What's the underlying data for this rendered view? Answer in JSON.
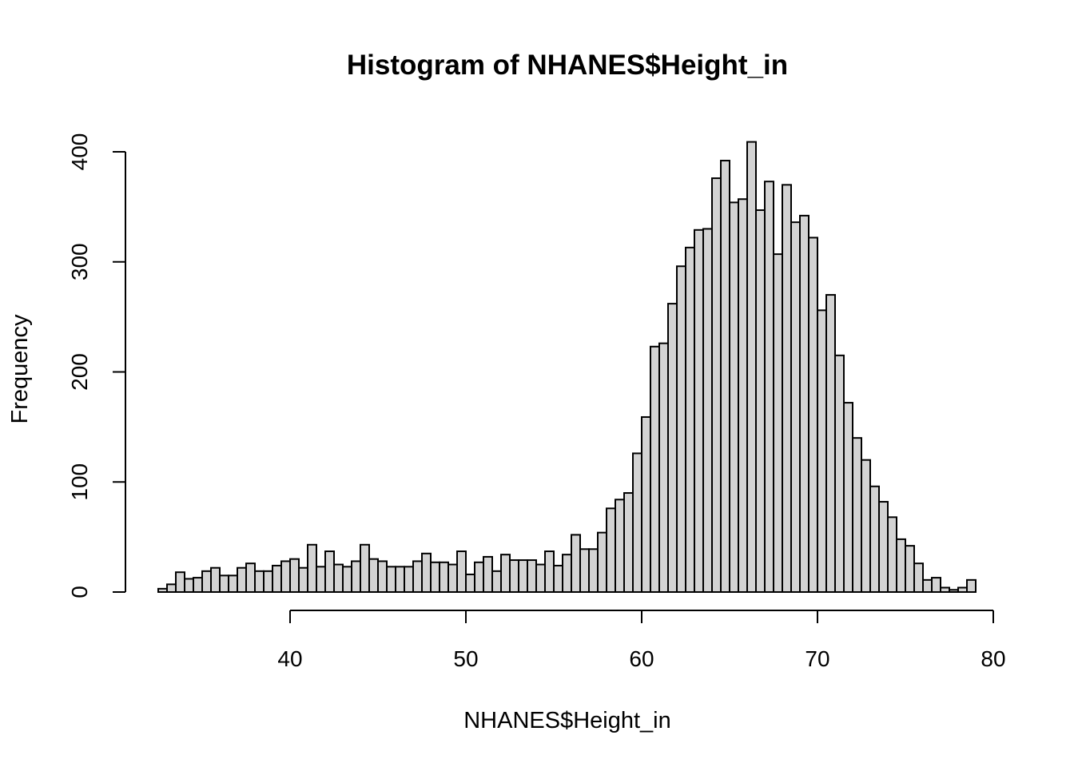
{
  "chart_data": {
    "type": "bar",
    "title": "Histogram of NHANES$Height_in",
    "xlabel": "NHANES$Height_in",
    "ylabel": "Frequency",
    "xlim": [
      32,
      80
    ],
    "ylim": [
      0,
      410
    ],
    "x_ticks": [
      40,
      50,
      60,
      70,
      80
    ],
    "x_tick_labels": [
      "40",
      "50",
      "60",
      "70",
      "80"
    ],
    "y_ticks": [
      0,
      100,
      200,
      300,
      400
    ],
    "y_tick_labels": [
      "0",
      "100",
      "200",
      "300",
      "400"
    ],
    "bin_start": 32.5,
    "bin_width": 0.5,
    "bar_color": "#d3d3d3",
    "values": [
      3,
      7,
      18,
      12,
      13,
      19,
      22,
      15,
      15,
      22,
      26,
      19,
      19,
      24,
      28,
      30,
      22,
      43,
      23,
      37,
      25,
      23,
      28,
      43,
      30,
      28,
      23,
      23,
      23,
      28,
      35,
      27,
      27,
      25,
      37,
      16,
      27,
      32,
      19,
      34,
      29,
      29,
      29,
      25,
      37,
      24,
      34,
      52,
      39,
      39,
      54,
      76,
      84,
      90,
      126,
      159,
      223,
      226,
      262,
      296,
      313,
      329,
      330,
      376,
      392,
      354,
      357,
      409,
      347,
      373,
      307,
      370,
      336,
      342,
      322,
      256,
      270,
      215,
      172,
      140,
      120,
      96,
      82,
      68,
      48,
      42,
      26,
      11,
      13,
      4,
      2,
      4,
      11
    ]
  }
}
